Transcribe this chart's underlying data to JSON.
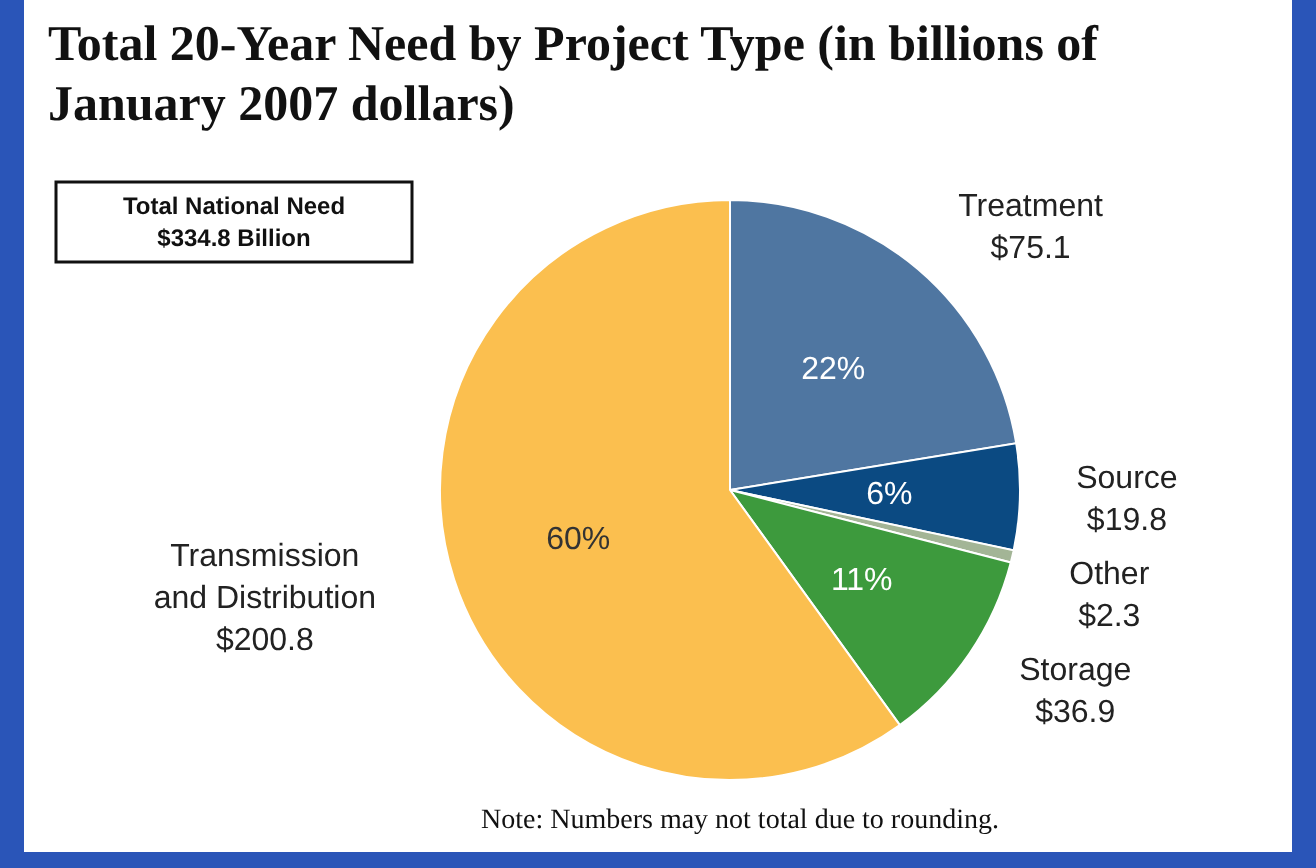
{
  "chart_data": {
    "type": "pie",
    "title": "Total 20-Year Need by Project Type (in billions of January 2007 dollars)",
    "categories": [
      "Treatment",
      "Source",
      "Other",
      "Storage",
      "Transmission and Distribution"
    ],
    "values": [
      75.1,
      19.8,
      2.3,
      36.9,
      200.8
    ],
    "value_labels": [
      "$75.1",
      "$19.8",
      "$2.3",
      "$36.9",
      "$200.8"
    ],
    "colors": [
      "#4f76a1",
      "#0b4a82",
      "#a3b596",
      "#3d9a3d",
      "#fbbf4f"
    ],
    "annotations": [
      {
        "text": "22%",
        "x": "Treatment"
      },
      {
        "text": "6%",
        "x": "Source"
      },
      {
        "text": "11%",
        "x": "Storage"
      },
      {
        "text": "60%",
        "x": "Transmission and Distribution"
      },
      "Total National Need\n$334.8 Billion",
      "Note: Numbers may not total due to rounding."
    ]
  }
}
